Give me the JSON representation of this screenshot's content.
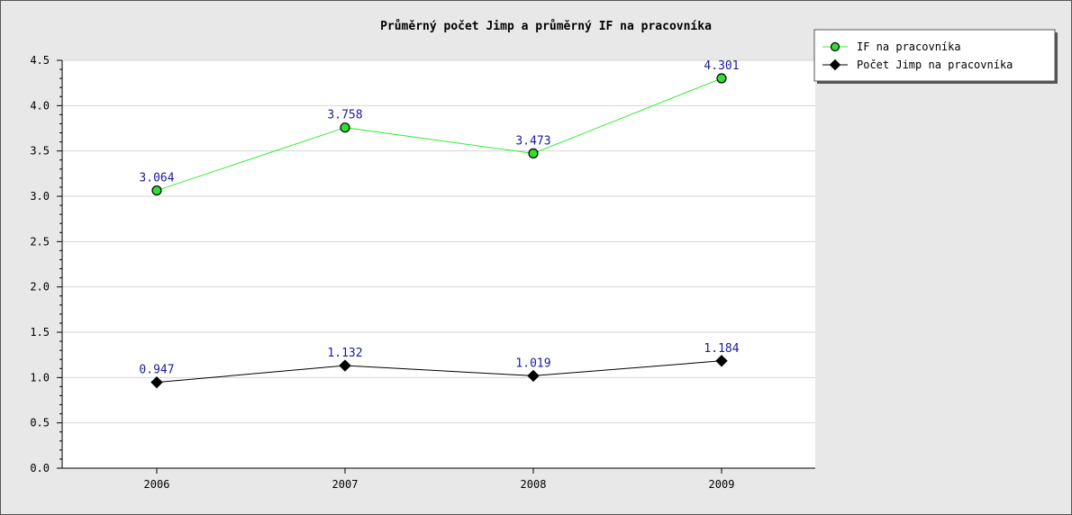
{
  "chart_data": {
    "type": "line",
    "title": "Průměrný počet Jimp a průměrný IF na pracovníka",
    "xlabel": "",
    "ylabel": "",
    "categories": [
      "2006",
      "2007",
      "2008",
      "2009"
    ],
    "ylim": [
      0,
      4.5
    ],
    "yticks": [
      "0.0",
      "0.5",
      "1.0",
      "1.5",
      "2.0",
      "2.5",
      "3.0",
      "3.5",
      "4.0",
      "4.5"
    ],
    "grid": true,
    "legend_position": "top-right",
    "series": [
      {
        "name": "IF na pracovníka",
        "values": [
          3.064,
          3.758,
          3.473,
          4.301
        ],
        "labels": [
          "3.064",
          "3.758",
          "3.473",
          "4.301"
        ],
        "color": "#33ee33",
        "marker": "circle",
        "marker_fill": "#33dd33"
      },
      {
        "name": "Počet Jimp na pracovníka",
        "values": [
          0.947,
          1.132,
          1.019,
          1.184
        ],
        "labels": [
          "0.947",
          "1.132",
          "1.019",
          "1.184"
        ],
        "color": "#000000",
        "marker": "diamond",
        "marker_fill": "#000000"
      }
    ],
    "colors": {
      "background": "#e8e8e8",
      "plot_background": "#ffffff",
      "gridline": "#d4d4d4",
      "data_label": "#1a1a9a"
    }
  }
}
